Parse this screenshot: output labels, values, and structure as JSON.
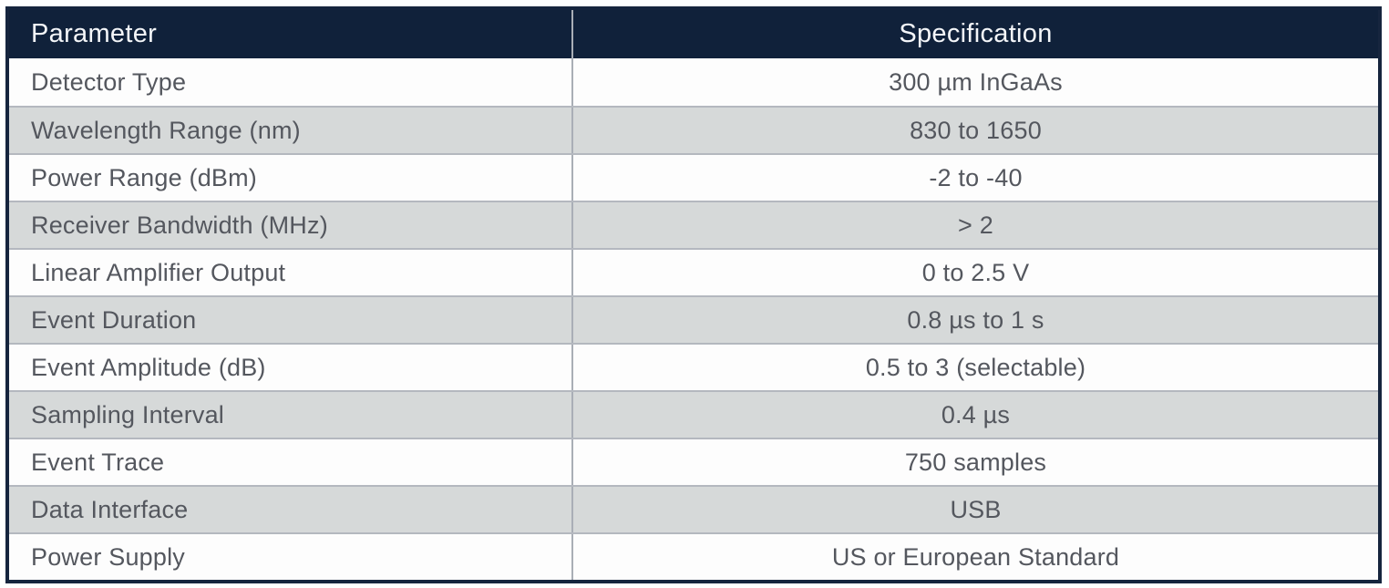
{
  "table": {
    "columns": {
      "parameter": "Parameter",
      "specification": "Specification"
    },
    "rows": [
      {
        "parameter": "Detector Type",
        "specification": "300 µm InGaAs"
      },
      {
        "parameter": "Wavelength Range (nm)",
        "specification": "830 to 1650"
      },
      {
        "parameter": "Power Range (dBm)",
        "specification": "-2 to -40"
      },
      {
        "parameter": "Receiver Bandwidth (MHz)",
        "specification": "> 2"
      },
      {
        "parameter": "Linear Amplifier Output",
        "specification": "0 to 2.5 V"
      },
      {
        "parameter": "Event Duration",
        "specification": "0.8 µs to 1 s"
      },
      {
        "parameter": "Event Amplitude (dB)",
        "specification": "0.5 to 3 (selectable)"
      },
      {
        "parameter": "Sampling Interval",
        "specification": "0.4 µs"
      },
      {
        "parameter": "Event Trace",
        "specification": "750 samples"
      },
      {
        "parameter": "Data Interface",
        "specification": "USB"
      },
      {
        "parameter": "Power Supply",
        "specification": "US or European Standard"
      }
    ]
  },
  "colors": {
    "header_bg": "#10213a",
    "header_text": "#f4f6f9",
    "row_bg": "#fdfdfd",
    "row_alt_bg": "#d6d9d9",
    "body_text": "#54575e",
    "outer_border": "#16253e",
    "column_divider": "#a9aeb6",
    "row_divider": "#b4b8bf"
  }
}
